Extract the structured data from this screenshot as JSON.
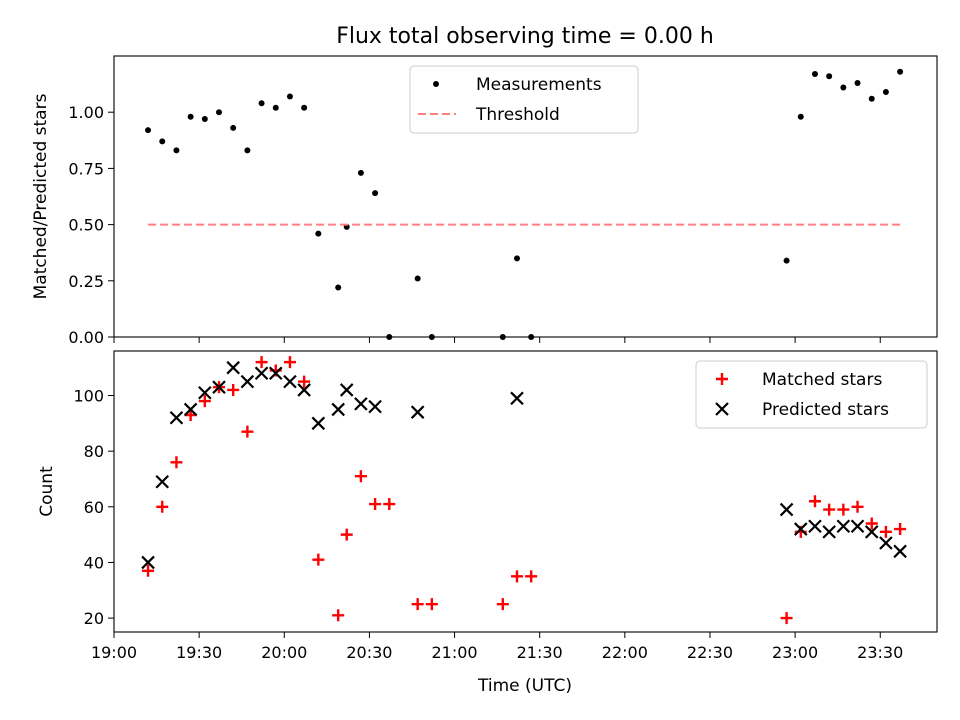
{
  "figure": {
    "title": "Flux total observing time = 0.00 h",
    "xlabel": "Time (UTC)"
  },
  "colors": {
    "measurement": "#000000",
    "threshold": "#ff7f7f",
    "matched": "#ff0000",
    "predicted": "#000000"
  },
  "chart_data": [
    {
      "type": "scatter",
      "ylabel": "Matched/Predicted stars",
      "ylim": [
        0,
        1.25
      ],
      "xlim": [
        "19:00",
        "23:50"
      ],
      "yticks": [
        "0.00",
        "0.25",
        "0.50",
        "0.75",
        "1.00"
      ],
      "legend_location": "upper center",
      "series": [
        {
          "name": "Measurements",
          "marker": "dot",
          "x": [
            "19:12",
            "19:17",
            "19:22",
            "19:27",
            "19:32",
            "19:37",
            "19:42",
            "19:47",
            "19:52",
            "19:57",
            "20:02",
            "20:07",
            "20:12",
            "20:19",
            "20:22",
            "20:27",
            "20:32",
            "20:37",
            "20:47",
            "20:52",
            "21:17",
            "21:22",
            "21:27",
            "22:57",
            "23:02",
            "23:07",
            "23:12",
            "23:17",
            "23:22",
            "23:27",
            "23:32",
            "23:37"
          ],
          "y": [
            0.92,
            0.87,
            0.83,
            0.98,
            0.97,
            1.0,
            0.93,
            0.83,
            1.04,
            1.02,
            1.07,
            1.02,
            0.46,
            0.22,
            0.49,
            0.73,
            0.64,
            0.0,
            0.26,
            0.0,
            0.0,
            0.35,
            0.0,
            0.34,
            0.98,
            1.17,
            1.16,
            1.11,
            1.13,
            1.06,
            1.09,
            1.18
          ]
        },
        {
          "name": "Threshold",
          "marker": "dashed-line",
          "x": [
            "19:12",
            "23:37"
          ],
          "y": [
            0.5,
            0.5
          ]
        }
      ]
    },
    {
      "type": "scatter",
      "ylabel": "Count",
      "ylim": [
        15,
        116
      ],
      "xlim": [
        "19:00",
        "23:50"
      ],
      "yticks": [
        "20",
        "40",
        "60",
        "80",
        "100"
      ],
      "xticks": [
        "19:00",
        "19:30",
        "20:00",
        "20:30",
        "21:00",
        "21:30",
        "22:00",
        "22:30",
        "23:00",
        "23:30"
      ],
      "legend_location": "upper right",
      "series": [
        {
          "name": "Matched stars",
          "marker": "+",
          "x": [
            "19:12",
            "19:17",
            "19:22",
            "19:27",
            "19:32",
            "19:37",
            "19:42",
            "19:47",
            "19:52",
            "19:57",
            "20:02",
            "20:07",
            "20:12",
            "20:19",
            "20:22",
            "20:27",
            "20:32",
            "20:37",
            "20:47",
            "20:52",
            "21:17",
            "21:22",
            "21:27",
            "22:57",
            "23:02",
            "23:07",
            "23:12",
            "23:17",
            "23:22",
            "23:27",
            "23:32",
            "23:37"
          ],
          "y": [
            37,
            60,
            76,
            93,
            98,
            103,
            102,
            87,
            112,
            109,
            112,
            105,
            41,
            21,
            50,
            71,
            61,
            61,
            25,
            25,
            25,
            35,
            35,
            20,
            51,
            62,
            59,
            59,
            60,
            54,
            51,
            52
          ]
        },
        {
          "name": "Predicted stars",
          "marker": "x",
          "x": [
            "19:12",
            "19:17",
            "19:22",
            "19:27",
            "19:32",
            "19:37",
            "19:42",
            "19:47",
            "19:52",
            "19:57",
            "20:02",
            "20:07",
            "20:12",
            "20:19",
            "20:22",
            "20:27",
            "20:32",
            "20:47",
            "21:22",
            "22:57",
            "23:02",
            "23:07",
            "23:12",
            "23:17",
            "23:22",
            "23:27",
            "23:32",
            "23:37"
          ],
          "y": [
            40,
            69,
            92,
            95,
            101,
            103,
            110,
            105,
            108,
            108,
            105,
            102,
            90,
            95,
            102,
            97,
            96,
            94,
            99,
            59,
            52,
            53,
            51,
            53,
            53,
            51,
            47,
            44
          ]
        }
      ]
    }
  ]
}
